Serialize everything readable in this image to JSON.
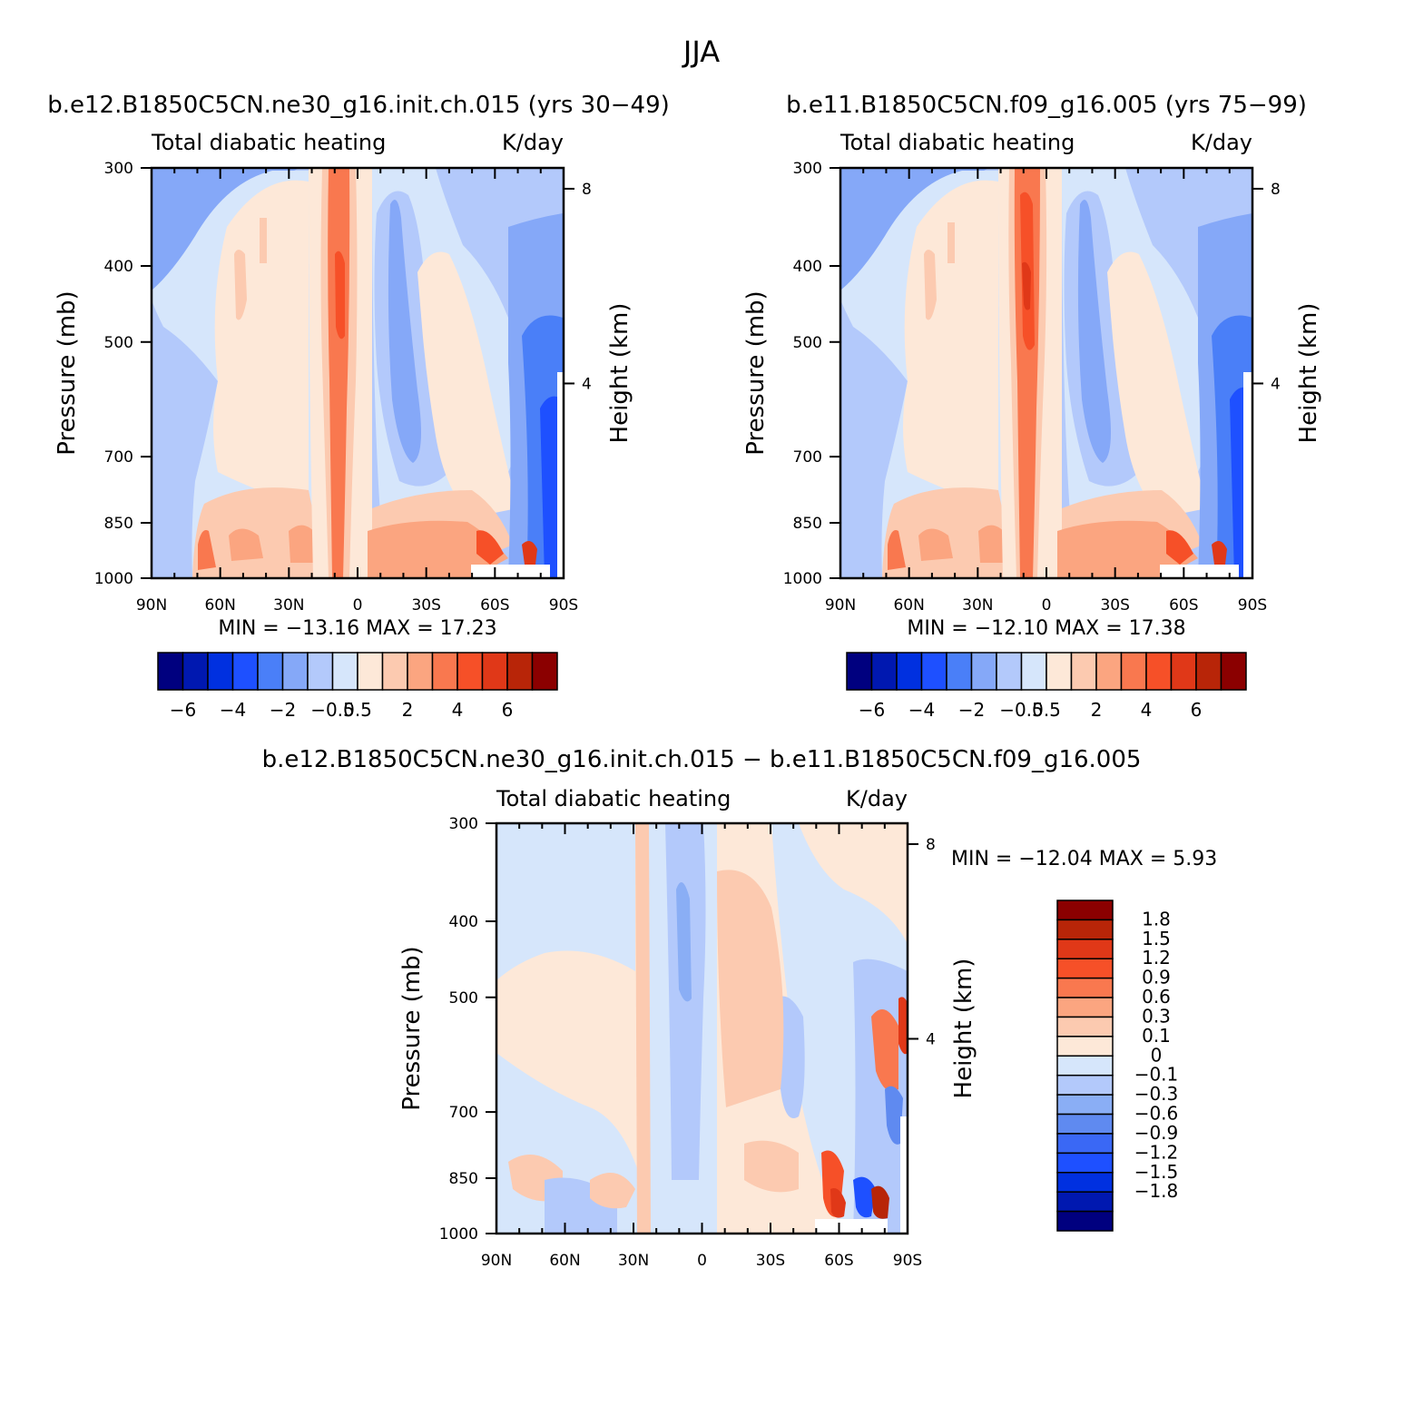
{
  "page_title": "JJA",
  "chart_data": [
    {
      "type": "heatmap",
      "id": "panel1",
      "case_title": "b.e12.B1850C5CN.ne30_g16.init.ch.015 (yrs 30−49)",
      "field_title": "Total diabatic heating",
      "units": "K/day",
      "ylabel": "Pressure (mb)",
      "ylabel_right": "Height (km)",
      "x_ticks": [
        "90N",
        "60N",
        "30N",
        "0",
        "30S",
        "60S",
        "90S"
      ],
      "xlim": [
        90,
        -90
      ],
      "y_ticks": [
        "300",
        "400",
        "500",
        "700",
        "850",
        "1000"
      ],
      "ylim": [
        1000,
        300
      ],
      "y_ticks_right": [
        "8",
        "4"
      ],
      "stats_label": "MIN = −13.16   MAX =   17.23",
      "min": -13.16,
      "max": 17.23,
      "colorbar_labels": [
        "−6",
        "−4",
        "−2",
        "−0.5",
        "0.5",
        "2",
        "4",
        "6"
      ]
    },
    {
      "type": "heatmap",
      "id": "panel2",
      "case_title": "b.e11.B1850C5CN.f09_g16.005 (yrs 75−99)",
      "field_title": "Total diabatic heating",
      "units": "K/day",
      "ylabel": "Pressure (mb)",
      "ylabel_right": "Height (km)",
      "x_ticks": [
        "90N",
        "60N",
        "30N",
        "0",
        "30S",
        "60S",
        "90S"
      ],
      "xlim": [
        90,
        -90
      ],
      "y_ticks": [
        "300",
        "400",
        "500",
        "700",
        "850",
        "1000"
      ],
      "ylim": [
        1000,
        300
      ],
      "y_ticks_right": [
        "8",
        "4"
      ],
      "stats_label": "MIN = −12.10   MAX =   17.38",
      "min": -12.1,
      "max": 17.38,
      "colorbar_labels": [
        "−6",
        "−4",
        "−2",
        "−0.5",
        "0.5",
        "2",
        "4",
        "6"
      ]
    },
    {
      "type": "heatmap",
      "id": "panel3",
      "case_title": "b.e12.B1850C5CN.ne30_g16.init.ch.015 − b.e11.B1850C5CN.f09_g16.005",
      "field_title": "Total diabatic heating",
      "units": "K/day",
      "ylabel": "Pressure (mb)",
      "ylabel_right": "Height (km)",
      "x_ticks": [
        "90N",
        "60N",
        "30N",
        "0",
        "30S",
        "60S",
        "90S"
      ],
      "xlim": [
        90,
        -90
      ],
      "y_ticks": [
        "300",
        "400",
        "500",
        "700",
        "850",
        "1000"
      ],
      "ylim": [
        1000,
        300
      ],
      "y_ticks_right": [
        "8",
        "4"
      ],
      "stats_label": "MIN = −12.04   MAX =    5.93",
      "min": -12.04,
      "max": 5.93,
      "colorbar_labels": [
        "1.8",
        "1.5",
        "1.2",
        "0.9",
        "0.6",
        "0.3",
        "0.1",
        "0",
        "−0.1",
        "−0.3",
        "−0.6",
        "−0.9",
        "−1.2",
        "−1.5",
        "−1.8"
      ]
    }
  ],
  "palette_full": [
    "#00007f",
    "#0018b0",
    "#0030e0",
    "#1e50ff",
    "#4a7ff8",
    "#85a8f8",
    "#b3c9fb",
    "#d6e6fb",
    "#fde8d8",
    "#fccab0",
    "#fba580",
    "#f9784f",
    "#f65028",
    "#e03818",
    "#b82508",
    "#8b0000"
  ],
  "palette_diff": [
    "#00007f",
    "#0018b0",
    "#0030e0",
    "#1e50ff",
    "#3a68f5",
    "#5f8af0",
    "#8aaef5",
    "#b3c9fb",
    "#d6e6fb",
    "#fde8d8",
    "#fccab0",
    "#fba580",
    "#f9784f",
    "#f65028",
    "#e03818",
    "#b82508",
    "#8b0000"
  ]
}
